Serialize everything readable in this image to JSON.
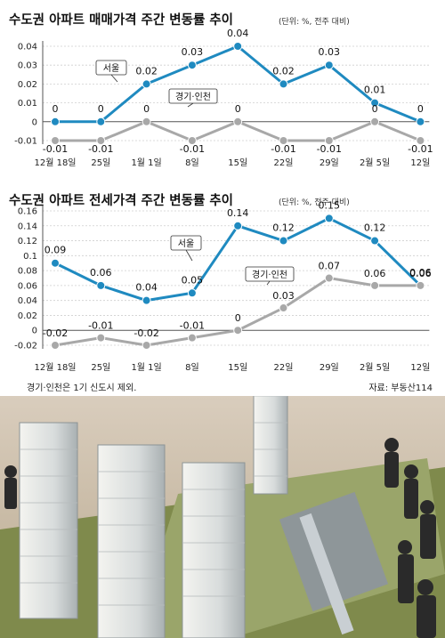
{
  "chart_data": [
    {
      "type": "line",
      "title": "수도권 아파트 매매가격 주간 변동률 추이",
      "unit_note": "(단위: %, 전주 대비)",
      "categories": [
        "12월 18일",
        "25일",
        "1월 1일",
        "8일",
        "15일",
        "22일",
        "29일",
        "2월 5일",
        "12일"
      ],
      "ylim": [
        -0.02,
        0.04
      ],
      "yticks": [
        "0.04",
        "0.03",
        "0.02",
        "0.01",
        "0",
        "-0.01"
      ],
      "ytick_values": [
        0.04,
        0.03,
        0.02,
        0.01,
        0,
        -0.01
      ],
      "series": [
        {
          "name": "서울",
          "color": "#1f8ac0",
          "values": [
            0,
            0,
            0.02,
            0.03,
            0.04,
            0.02,
            0.03,
            0.01,
            0
          ],
          "labels": [
            "0",
            "0",
            "0.02",
            "0.03",
            "0.04",
            "0.02",
            "0.03",
            "0.01",
            "0"
          ]
        },
        {
          "name": "경기·인천",
          "color": "#a8a8a8",
          "values": [
            -0.01,
            -0.01,
            0,
            -0.01,
            0,
            -0.01,
            -0.01,
            0,
            -0.01
          ],
          "labels": [
            "-0.01",
            "-0.01",
            "0",
            "-0.01",
            "0",
            "-0.01",
            "-0.01",
            "0",
            "-0.01"
          ]
        }
      ]
    },
    {
      "type": "line",
      "title": "수도권 아파트 전세가격 주간 변동률 추이",
      "unit_note": "(단위: %, 전주 대비)",
      "categories": [
        "12월 18일",
        "25일",
        "1월 1일",
        "8일",
        "15일",
        "22일",
        "29일",
        "2월 5일",
        "12일"
      ],
      "ylim": [
        -0.02,
        0.16
      ],
      "yticks": [
        "0.16",
        "0.14",
        "0.12",
        "0.1",
        "0.08",
        "0.06",
        "0.04",
        "0.02",
        "0",
        "-0.02"
      ],
      "ytick_values": [
        0.16,
        0.14,
        0.12,
        0.1,
        0.08,
        0.06,
        0.04,
        0.02,
        0,
        -0.02
      ],
      "series": [
        {
          "name": "서울",
          "color": "#1f8ac0",
          "values": [
            0.09,
            0.06,
            0.04,
            0.05,
            0.14,
            0.12,
            0.15,
            0.12,
            0.06
          ],
          "labels": [
            "0.09",
            "0.06",
            "0.04",
            "0.05",
            "0.14",
            "0.12",
            "0.15",
            "0.12",
            "0.06"
          ]
        },
        {
          "name": "경기·인천",
          "color": "#a8a8a8",
          "values": [
            -0.02,
            -0.01,
            -0.02,
            -0.01,
            0,
            0.03,
            0.07,
            0.06,
            0.06
          ],
          "labels": [
            "-0.02",
            "-0.01",
            "-0.02",
            "-0.01",
            "0",
            "0.03",
            "0.07",
            "0.06",
            "0.06"
          ]
        }
      ]
    }
  ],
  "footnote": "경기·인천은 1기 신도시 제외.",
  "source": "자료: 부동산114"
}
